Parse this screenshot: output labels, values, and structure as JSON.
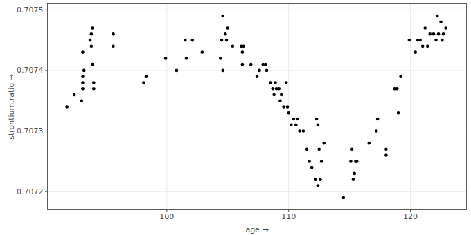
{
  "chart_data": {
    "type": "scatter",
    "xlabel": "age",
    "ylabel": "strontium.ratio",
    "color": "#000000",
    "marker": "circle",
    "grid": true,
    "xlim": [
      90.2,
      124.6
    ],
    "xticks": [
      100,
      110,
      120
    ],
    "ylim": [
      0.70717,
      0.70751
    ],
    "yticks": [
      0.7072,
      0.7073,
      0.7074,
      0.7075
    ],
    "x": [
      91.8,
      92.4,
      93.0,
      93.1,
      93.1,
      93.1,
      93.1,
      93.2,
      93.7,
      93.8,
      93.8,
      93.9,
      93.9,
      94.0,
      94.0,
      95.6,
      95.6,
      98.1,
      98.3,
      99.9,
      100.8,
      101.5,
      101.6,
      102.1,
      102.9,
      104.4,
      104.5,
      104.6,
      104.6,
      104.8,
      104.9,
      105.0,
      105.4,
      106.1,
      106.2,
      106.2,
      106.3,
      106.9,
      107.4,
      107.6,
      107.9,
      108.1,
      108.2,
      108.5,
      108.7,
      108.8,
      108.9,
      109.0,
      109.2,
      109.3,
      109.4,
      109.6,
      109.8,
      109.9,
      110.0,
      110.2,
      110.4,
      110.6,
      110.7,
      110.9,
      111.2,
      111.5,
      111.7,
      111.9,
      112.2,
      112.3,
      112.4,
      112.4,
      112.5,
      112.6,
      112.7,
      112.9,
      114.5,
      115.1,
      115.2,
      115.3,
      115.4,
      115.5,
      115.6,
      116.6,
      117.2,
      117.3,
      118.0,
      118.0,
      118.7,
      118.9,
      119.0,
      119.2,
      119.9,
      120.4,
      120.6,
      120.8,
      121.0,
      121.2,
      121.4,
      121.6,
      121.9,
      122.1,
      122.2,
      122.3,
      122.5,
      122.6,
      122.7,
      122.9
    ],
    "values": [
      0.70734,
      0.70736,
      0.70735,
      0.70743,
      0.70738,
      0.70739,
      0.70737,
      0.7074,
      0.70745,
      0.70744,
      0.70746,
      0.70747,
      0.70741,
      0.70738,
      0.70737,
      0.70746,
      0.70744,
      0.70738,
      0.70739,
      0.70742,
      0.7074,
      0.70745,
      0.70742,
      0.70745,
      0.70743,
      0.70742,
      0.70745,
      0.70749,
      0.7074,
      0.70746,
      0.70745,
      0.70747,
      0.70744,
      0.70744,
      0.70743,
      0.70741,
      0.70744,
      0.70741,
      0.70739,
      0.7074,
      0.70741,
      0.70741,
      0.7074,
      0.70738,
      0.70737,
      0.70736,
      0.70738,
      0.70737,
      0.70737,
      0.70735,
      0.70736,
      0.70734,
      0.70738,
      0.70734,
      0.70733,
      0.70731,
      0.70732,
      0.70731,
      0.70732,
      0.7073,
      0.7073,
      0.70727,
      0.70725,
      0.70724,
      0.70722,
      0.70732,
      0.70731,
      0.70721,
      0.70727,
      0.70722,
      0.70725,
      0.70728,
      0.70719,
      0.70725,
      0.70727,
      0.70722,
      0.70723,
      0.70725,
      0.70725,
      0.70728,
      0.7073,
      0.70732,
      0.70727,
      0.70726,
      0.70737,
      0.70737,
      0.70733,
      0.70739,
      0.70745,
      0.70743,
      0.70745,
      0.70745,
      0.70744,
      0.70747,
      0.70744,
      0.70746,
      0.70746,
      0.70745,
      0.70749,
      0.70746,
      0.70748,
      0.70745,
      0.70746,
      0.70747
    ]
  }
}
